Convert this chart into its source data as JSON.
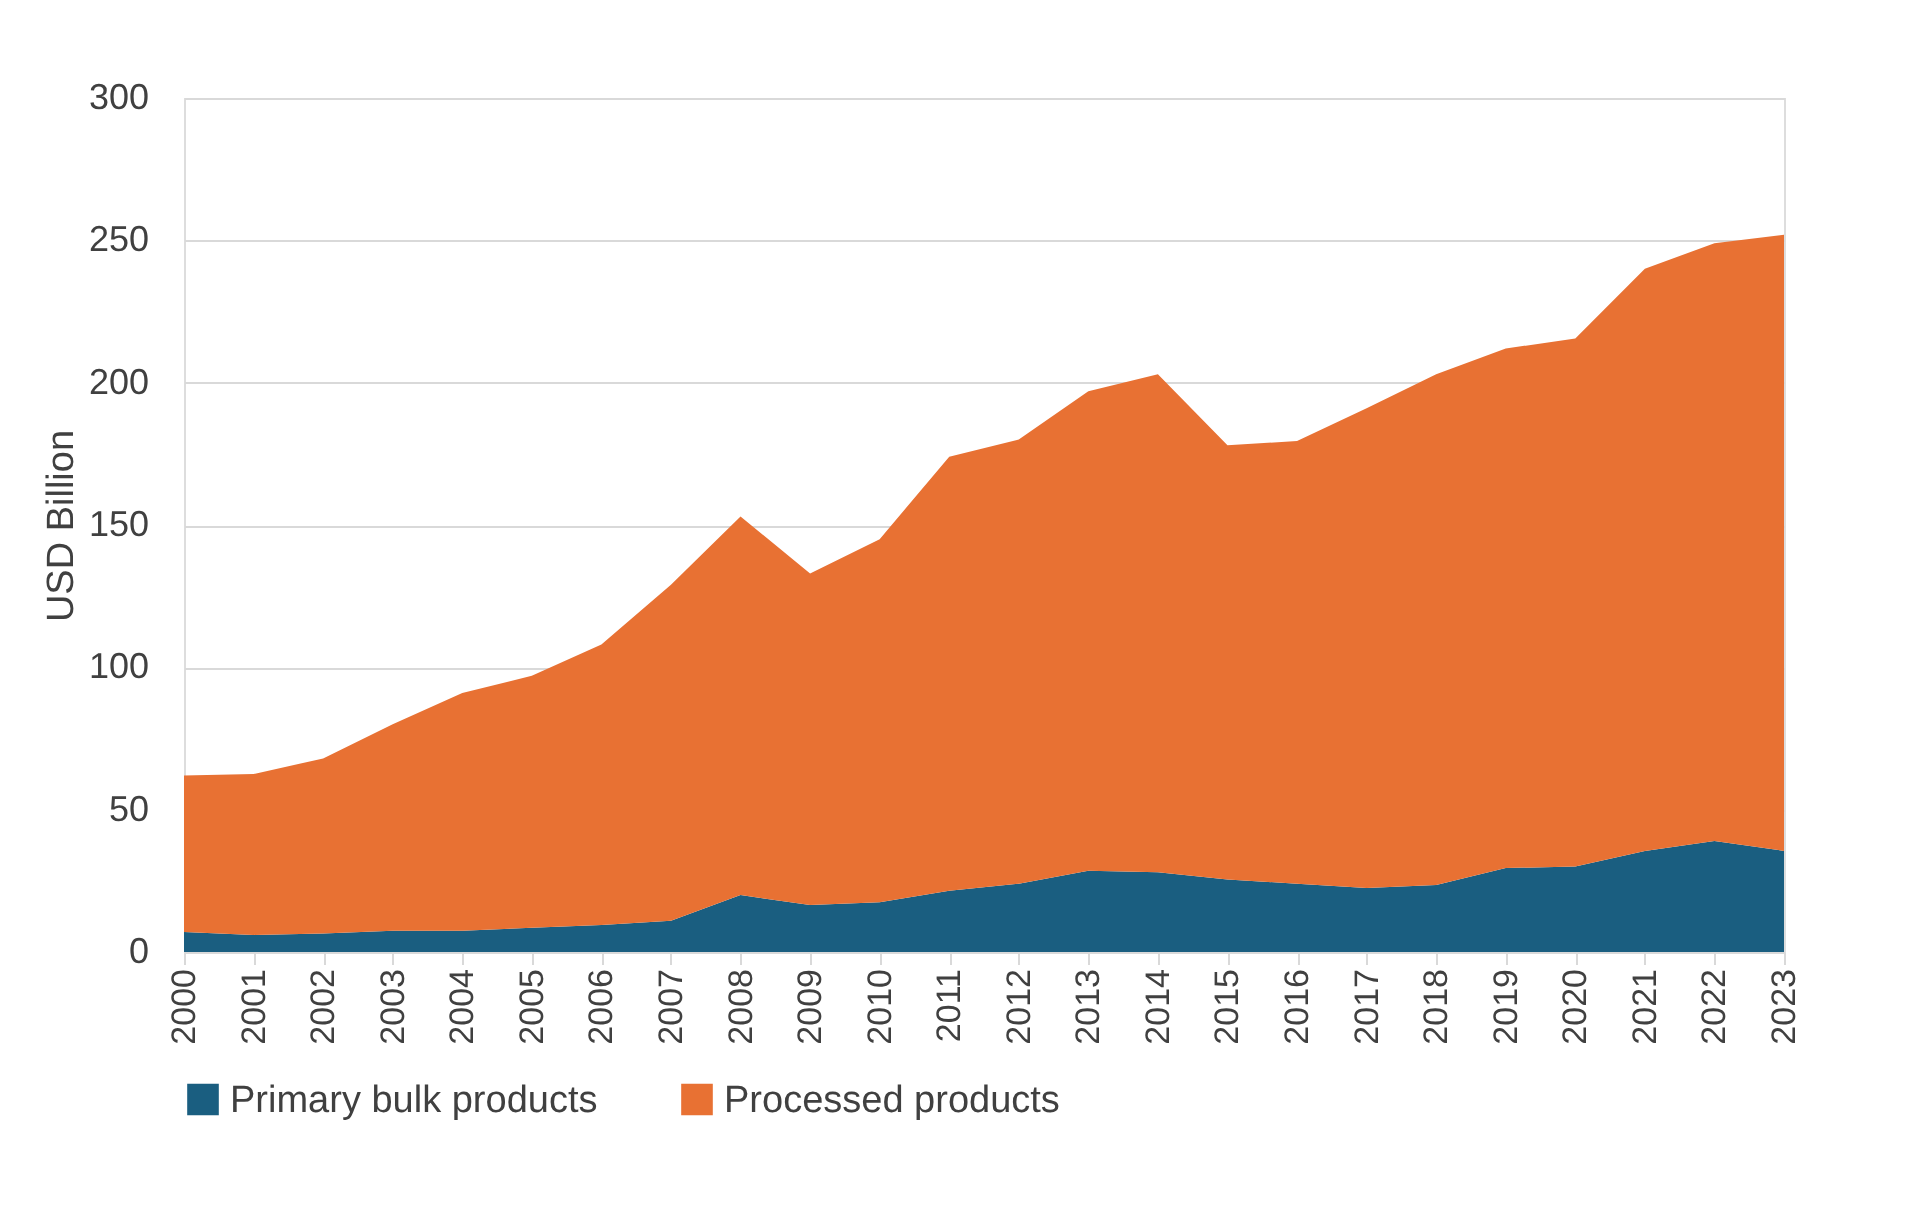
{
  "chart_data": {
    "type": "area",
    "stacked": true,
    "ylabel": "USD Billion",
    "categories": [
      "2000",
      "2001",
      "2002",
      "2003",
      "2004",
      "2005",
      "2006",
      "2007",
      "2008",
      "2009",
      "2010",
      "2011",
      "2012",
      "2013",
      "2014",
      "2015",
      "2016",
      "2017",
      "2018",
      "2019",
      "2020",
      "2021",
      "2022",
      "2023"
    ],
    "series": [
      {
        "name": "Primary bulk products",
        "color": "#1a5e80",
        "values": [
          7,
          6,
          6.5,
          7.5,
          7.5,
          8.5,
          9.5,
          11,
          20,
          16.5,
          17.5,
          21.5,
          24,
          28.5,
          28,
          25.5,
          24,
          22.5,
          23.5,
          29.5,
          30,
          35.5,
          39,
          35.5
        ]
      },
      {
        "name": "Processed products",
        "color": "#e87133",
        "values": [
          55,
          56.5,
          61.5,
          72.5,
          83.5,
          88.5,
          98.5,
          118,
          133,
          116.5,
          127.5,
          152.5,
          156,
          168.5,
          175,
          152.5,
          155.5,
          168.5,
          179.5,
          182.5,
          185.5,
          204.5,
          210,
          216.5
        ]
      }
    ],
    "ylim": [
      0,
      300
    ],
    "yticks": [
      0,
      50,
      100,
      150,
      200,
      250,
      300
    ],
    "grid": "y",
    "legend": "bottom"
  }
}
